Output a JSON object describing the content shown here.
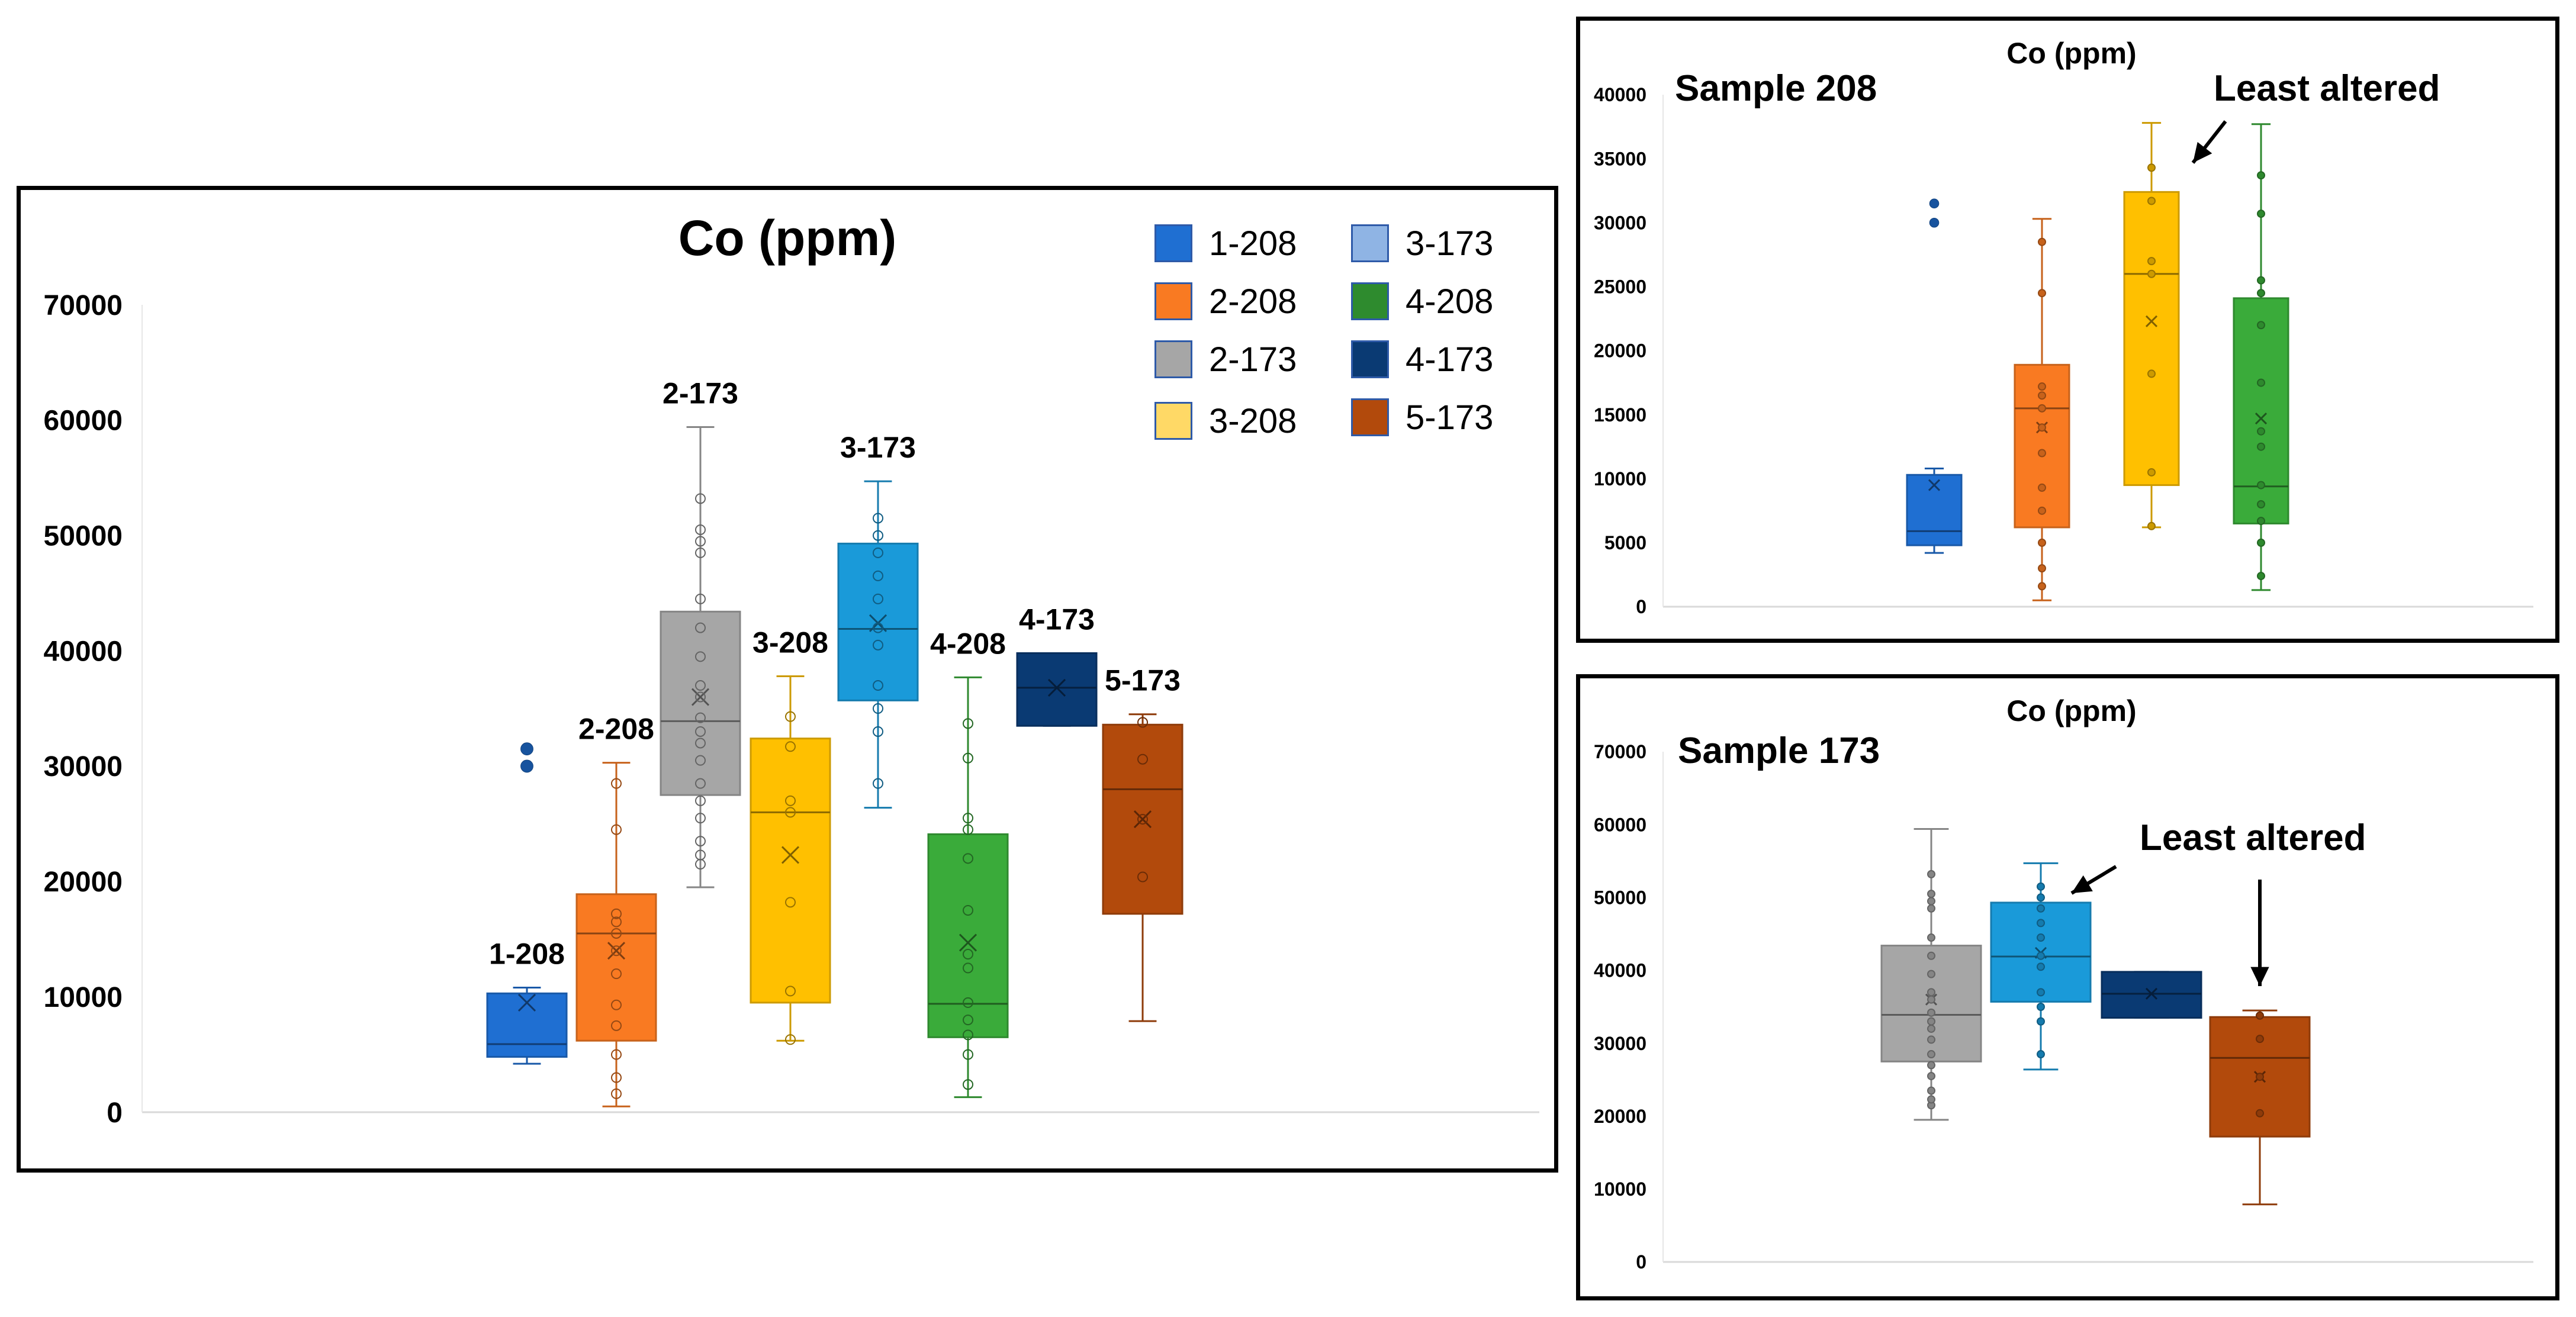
{
  "colors": {
    "1-208": "#1f6fd2",
    "2-208": "#f97a22",
    "2-173": "#a6a6a6",
    "3-208": "#ffc000",
    "3-173": "#1a9ad9",
    "4-208": "#3aab3a",
    "4-173": "#0a3a73",
    "5-173": "#b24a0c",
    "legend_3-173": "#8fb4e4",
    "legend_3-208": "#ffd966",
    "legend_4-208": "#2e8b2e"
  },
  "chart_data": [
    {
      "id": "main",
      "type": "box",
      "title": "Co (ppm)",
      "ylim": [
        0,
        70000
      ],
      "yticks": [
        "0",
        "10000",
        "20000",
        "30000",
        "40000",
        "50000",
        "60000",
        "70000"
      ],
      "legend": {
        "placement": "top-right",
        "items": [
          {
            "label": "1-208",
            "color_key": "1-208"
          },
          {
            "label": "2-208",
            "color_key": "2-208"
          },
          {
            "label": "2-173",
            "color_key": "2-173"
          },
          {
            "label": "3-208",
            "color_key": "legend_3-208"
          },
          {
            "label": "3-173",
            "color_key": "legend_3-173"
          },
          {
            "label": "4-208",
            "color_key": "legend_4-208"
          },
          {
            "label": "4-173",
            "color_key": "4-173"
          },
          {
            "label": "5-173",
            "color_key": "5-173"
          }
        ]
      },
      "series": [
        {
          "name": "1-208",
          "min": 4200,
          "q1": 4800,
          "median": 5900,
          "q3": 10300,
          "max": 10800,
          "mean": 9500,
          "points": [],
          "outliers": [
            31500,
            30000
          ]
        },
        {
          "name": "2-208",
          "min": 500,
          "q1": 6200,
          "median": 15500,
          "q3": 18900,
          "max": 30300,
          "mean": 14000,
          "points": [
            1600,
            3000,
            5000,
            7500,
            9300,
            12000,
            14000,
            15500,
            16500,
            17200,
            24500,
            28500
          ],
          "outliers": []
        },
        {
          "name": "2-173",
          "min": 19500,
          "q1": 27500,
          "median": 33900,
          "q3": 43400,
          "max": 59400,
          "mean": 36000,
          "points": [
            21500,
            22300,
            23500,
            25500,
            27000,
            28500,
            30500,
            32000,
            33000,
            34200,
            36000,
            37000,
            39500,
            42000,
            44500,
            48500,
            49500,
            50500,
            53200
          ],
          "outliers": []
        },
        {
          "name": "3-208",
          "min": 6200,
          "q1": 9500,
          "median": 26000,
          "q3": 32400,
          "max": 37800,
          "mean": 22300,
          "points": [
            6300,
            10500,
            18200,
            26000,
            27000,
            31700,
            34300
          ],
          "outliers": []
        },
        {
          "name": "3-173",
          "min": 26400,
          "q1": 35700,
          "median": 41900,
          "q3": 49300,
          "max": 54700,
          "mean": 42400,
          "points": [
            28500,
            33000,
            35000,
            37000,
            40500,
            42000,
            44500,
            46500,
            48500,
            50000,
            51500
          ],
          "outliers": []
        },
        {
          "name": "4-208",
          "min": 1300,
          "q1": 6500,
          "median": 9400,
          "q3": 24100,
          "max": 37700,
          "mean": 14700,
          "points": [
            2400,
            5000,
            6700,
            8000,
            9500,
            12500,
            13700,
            17500,
            22000,
            24500,
            25500,
            30700,
            33700
          ],
          "outliers": []
        },
        {
          "name": "4-173",
          "min": 33500,
          "q1": 33500,
          "median": 36800,
          "q3": 39800,
          "max": 39800,
          "mean": 36800,
          "points": [],
          "outliers": []
        },
        {
          "name": "5-173",
          "min": 7900,
          "q1": 17200,
          "median": 28000,
          "q3": 33600,
          "max": 34500,
          "mean": 25400,
          "points": [
            20400,
            25400,
            30600,
            33800
          ],
          "outliers": []
        }
      ]
    },
    {
      "id": "sample208",
      "type": "box",
      "title": "Co (ppm)",
      "subtitle": "Sample 208",
      "annotation": "Least altered",
      "ylim": [
        0,
        40000
      ],
      "yticks": [
        "0",
        "5000",
        "10000",
        "15000",
        "20000",
        "25000",
        "30000",
        "35000",
        "40000"
      ],
      "series": [
        {
          "name": "1-208",
          "min": 4200,
          "q1": 4800,
          "median": 5900,
          "q3": 10300,
          "max": 10800,
          "mean": 9500,
          "points": [],
          "outliers": [
            31500,
            30000
          ]
        },
        {
          "name": "2-208",
          "min": 500,
          "q1": 6200,
          "median": 15500,
          "q3": 18900,
          "max": 30300,
          "mean": 14000,
          "points": [
            1600,
            3000,
            5000,
            7500,
            9300,
            12000,
            14000,
            15500,
            16500,
            17200,
            24500,
            28500
          ],
          "outliers": []
        },
        {
          "name": "3-208",
          "min": 6200,
          "q1": 9500,
          "median": 26000,
          "q3": 32400,
          "max": 37800,
          "mean": 22300,
          "points": [
            6300,
            10500,
            18200,
            26000,
            27000,
            31700,
            34300
          ],
          "outliers": []
        },
        {
          "name": "4-208",
          "min": 1300,
          "q1": 6500,
          "median": 9400,
          "q3": 24100,
          "max": 37700,
          "mean": 14700,
          "points": [
            2400,
            5000,
            6700,
            8000,
            9500,
            12500,
            13700,
            17500,
            22000,
            24500,
            25500,
            30700,
            33700
          ],
          "outliers": []
        }
      ]
    },
    {
      "id": "sample173",
      "type": "box",
      "title": "Co (ppm)",
      "subtitle": "Sample 173",
      "annotation": "Least altered",
      "ylim": [
        0,
        70000
      ],
      "yticks": [
        "0",
        "10000",
        "20000",
        "30000",
        "40000",
        "50000",
        "60000",
        "70000"
      ],
      "series": [
        {
          "name": "2-173",
          "min": 19500,
          "q1": 27500,
          "median": 33900,
          "q3": 43400,
          "max": 59400,
          "mean": 36000,
          "points": [
            21500,
            22300,
            23500,
            25500,
            27000,
            28500,
            30500,
            32000,
            33000,
            34200,
            36000,
            37000,
            39500,
            42000,
            44500,
            48500,
            49500,
            50500,
            53200
          ],
          "outliers": []
        },
        {
          "name": "3-173",
          "min": 26400,
          "q1": 35700,
          "median": 41900,
          "q3": 49300,
          "max": 54700,
          "mean": 42400,
          "points": [
            28500,
            33000,
            35000,
            37000,
            40500,
            42000,
            44500,
            46500,
            48500,
            50000,
            51500
          ],
          "outliers": []
        },
        {
          "name": "4-173",
          "min": 33500,
          "q1": 33500,
          "median": 36800,
          "q3": 39800,
          "max": 39800,
          "mean": 36800,
          "points": [],
          "outliers": []
        },
        {
          "name": "5-173",
          "min": 7900,
          "q1": 17200,
          "median": 28000,
          "q3": 33600,
          "max": 34500,
          "mean": 25400,
          "points": [
            20400,
            25400,
            30600,
            33800
          ],
          "outliers": []
        }
      ]
    }
  ]
}
